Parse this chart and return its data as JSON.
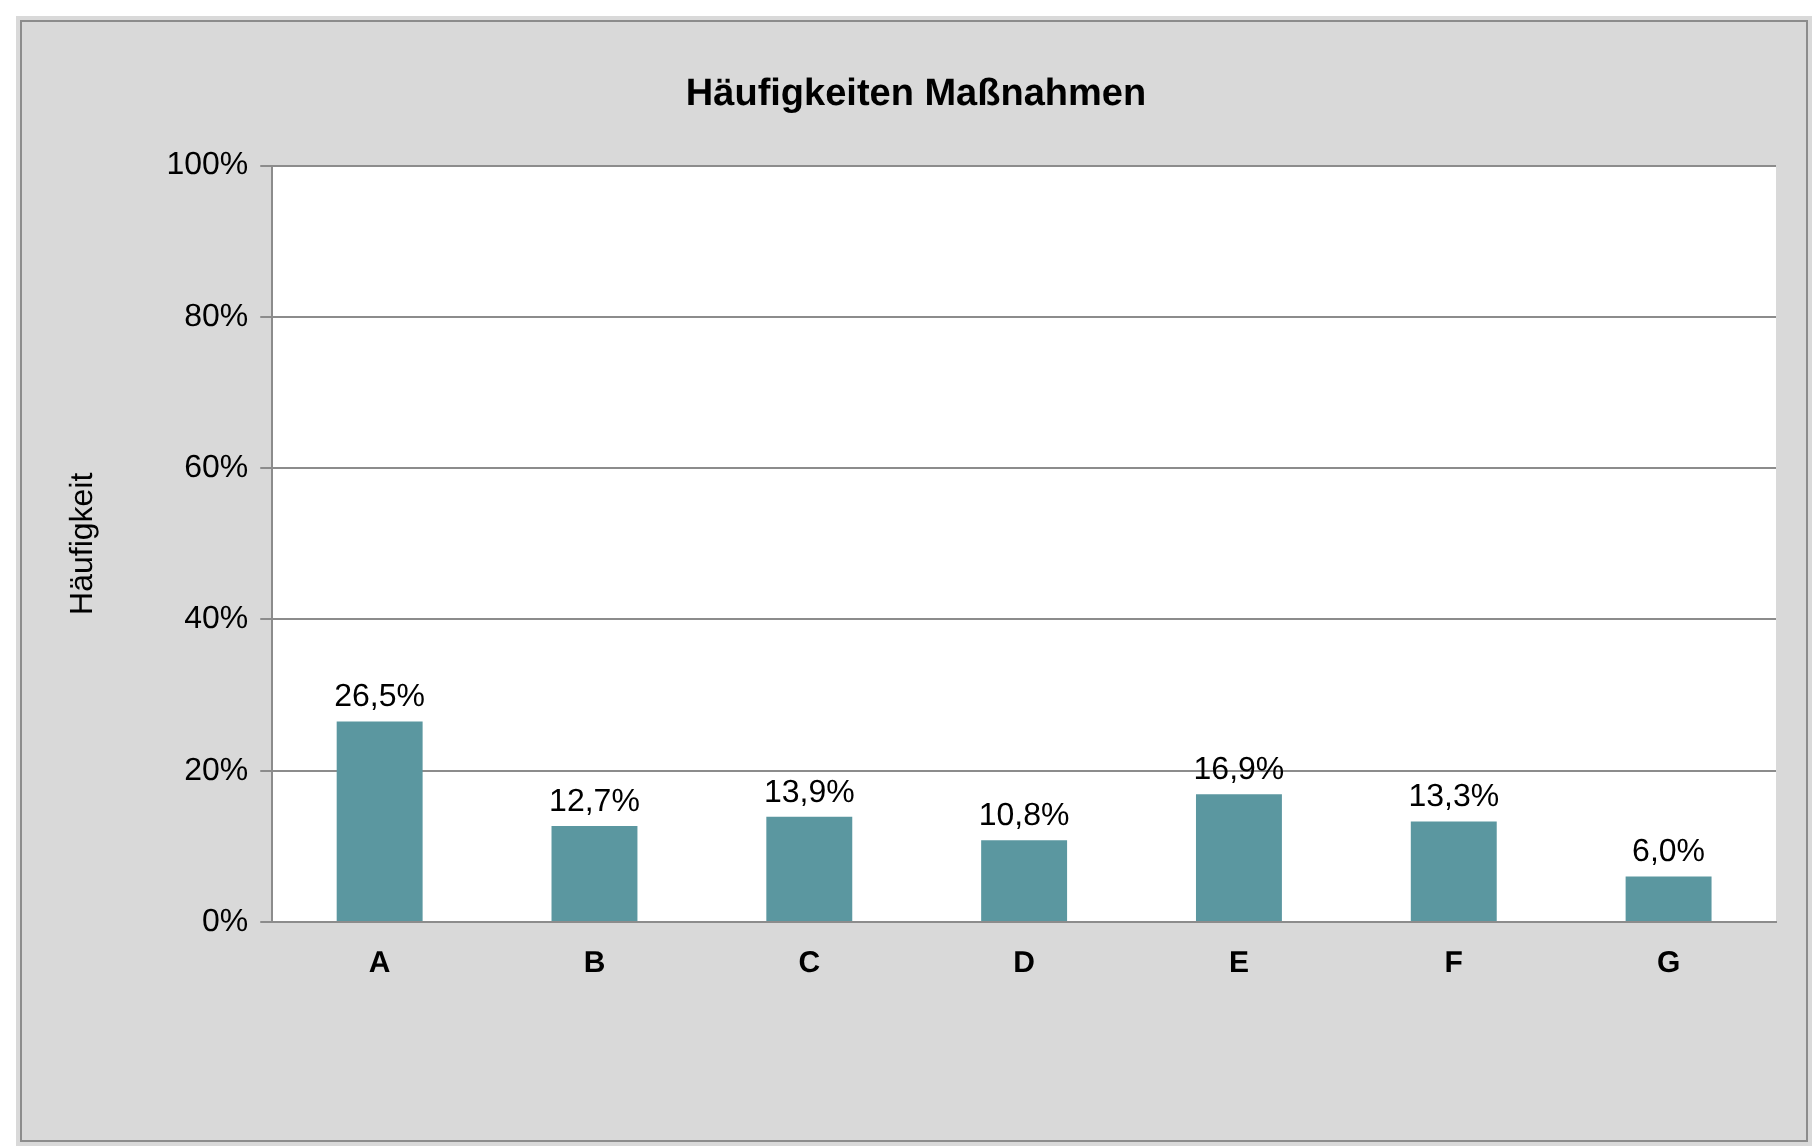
{
  "chart_data": {
    "type": "bar",
    "title": "Häufigkeiten Maßnahmen",
    "ylabel": "Häufigkeit",
    "categories": [
      "A",
      "B",
      "C",
      "D",
      "E",
      "F",
      "G"
    ],
    "values": [
      26.5,
      12.7,
      13.9,
      10.8,
      16.9,
      13.3,
      6.0
    ],
    "value_labels": [
      "26,5%",
      "12,7%",
      "13,9%",
      "10,8%",
      "16,9%",
      "13,3%",
      "6,0%"
    ],
    "color": "#5b97a0",
    "ylim": [
      0,
      100
    ],
    "yticks": [
      {
        "value": 0,
        "label": "0%"
      },
      {
        "value": 20,
        "label": "20%"
      },
      {
        "value": 40,
        "label": "40%"
      },
      {
        "value": 60,
        "label": "60%"
      },
      {
        "value": 80,
        "label": "80%"
      },
      {
        "value": 100,
        "label": "100%"
      }
    ],
    "grid": "y",
    "legend": false
  }
}
